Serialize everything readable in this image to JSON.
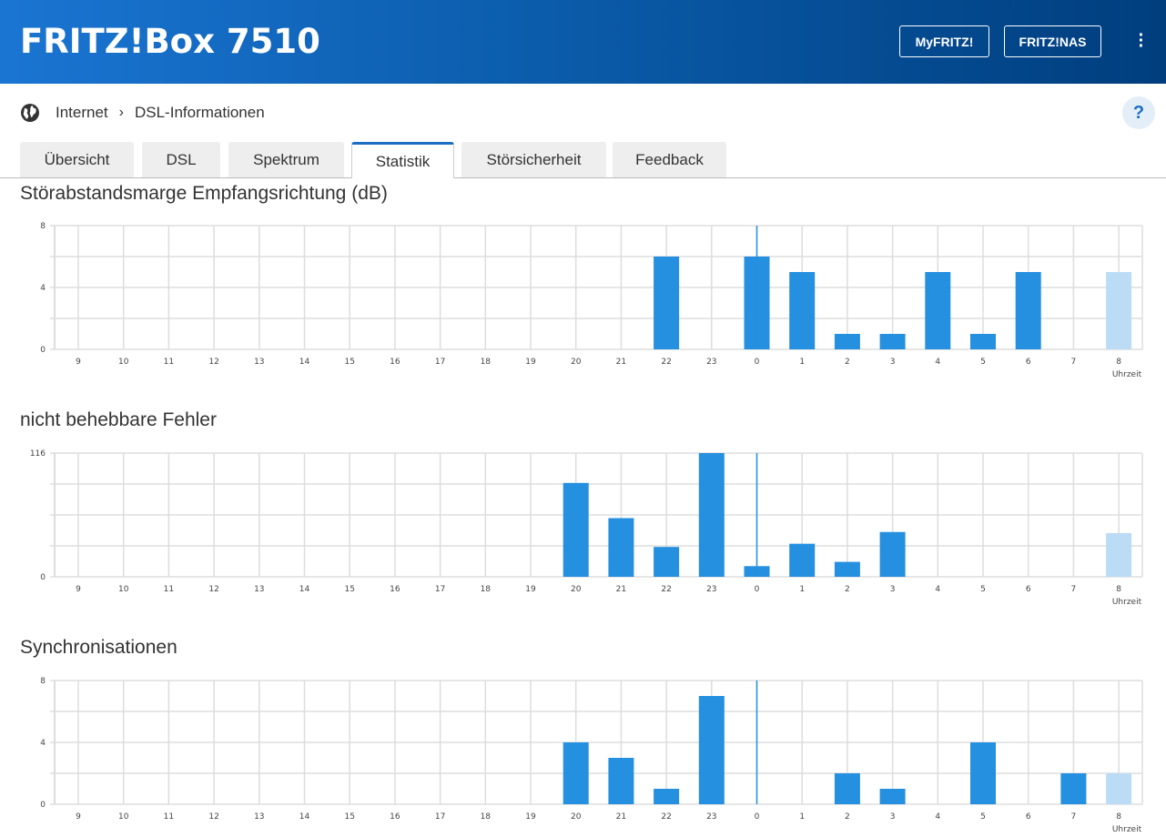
{
  "header": {
    "title": "FRITZ!Box 7510",
    "buttons": [
      "MyFRITZ!",
      "FRITZ!NAS"
    ],
    "menu_icon": "more-vertical-icon"
  },
  "breadcrumb": {
    "items": [
      "Internet",
      "DSL-Informationen"
    ],
    "help": "?"
  },
  "tabs": [
    "Übersicht",
    "DSL",
    "Spektrum",
    "Statistik",
    "Störsicherheit",
    "Feedback"
  ],
  "active_tab": "Statistik",
  "colors": {
    "bar": "#258fe0",
    "bar_current": "#bcdcf5",
    "marker": "#258fe0",
    "grid": "#ddd"
  },
  "chart_data": [
    {
      "type": "bar",
      "title": "Störabstandsmarge Empfangsrichtung (dB)",
      "xlabel": "Uhrzeit",
      "ylim": [
        0,
        8
      ],
      "yticks": [
        "0",
        "4",
        "8"
      ],
      "categories": [
        "9",
        "10",
        "11",
        "12",
        "13",
        "14",
        "15",
        "16",
        "17",
        "18",
        "19",
        "20",
        "21",
        "22",
        "23",
        "0",
        "1",
        "2",
        "3",
        "4",
        "5",
        "6",
        "7",
        "8"
      ],
      "values": [
        null,
        null,
        null,
        null,
        null,
        null,
        null,
        null,
        null,
        null,
        null,
        null,
        null,
        6,
        null,
        6,
        5,
        1,
        1,
        5,
        1,
        5,
        null,
        5
      ],
      "current_index": 23,
      "marker_index": 15
    },
    {
      "type": "bar",
      "title": "nicht behebbare Fehler",
      "xlabel": "Uhrzeit",
      "ylim": [
        0,
        116
      ],
      "yticks": [
        "0",
        "116"
      ],
      "categories": [
        "9",
        "10",
        "11",
        "12",
        "13",
        "14",
        "15",
        "16",
        "17",
        "18",
        "19",
        "20",
        "21",
        "22",
        "23",
        "0",
        "1",
        "2",
        "3",
        "4",
        "5",
        "6",
        "7",
        "8"
      ],
      "values": [
        null,
        null,
        null,
        null,
        null,
        null,
        null,
        null,
        null,
        null,
        null,
        88,
        55,
        28,
        116,
        10,
        31,
        14,
        42,
        null,
        null,
        null,
        null,
        41
      ],
      "current_index": 23,
      "marker_index": 15
    },
    {
      "type": "bar",
      "title": "Synchronisationen",
      "xlabel": "Uhrzeit",
      "ylim": [
        0,
        8
      ],
      "yticks": [
        "0",
        "4",
        "8"
      ],
      "categories": [
        "9",
        "10",
        "11",
        "12",
        "13",
        "14",
        "15",
        "16",
        "17",
        "18",
        "19",
        "20",
        "21",
        "22",
        "23",
        "0",
        "1",
        "2",
        "3",
        "4",
        "5",
        "6",
        "7",
        "8"
      ],
      "values": [
        null,
        null,
        null,
        null,
        null,
        null,
        null,
        null,
        null,
        null,
        null,
        4,
        3,
        1,
        7,
        null,
        null,
        2,
        1,
        null,
        4,
        null,
        2,
        2
      ],
      "current_index": 23,
      "marker_index": 15
    }
  ]
}
